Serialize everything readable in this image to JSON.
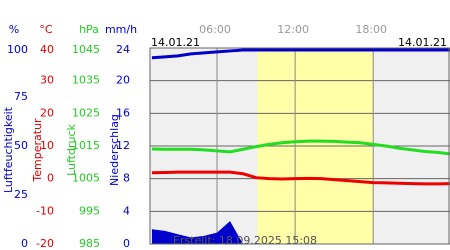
{
  "chart_data": {
    "type": "line",
    "date_left": "14.01.21",
    "date_right": "14.01.21",
    "footer": "Erstellt: 18.09.2025 15:08",
    "xlim": [
      0.85,
      23.9
    ],
    "xticks": [
      {
        "value": 6,
        "label": "06:00"
      },
      {
        "value": 12,
        "label": "12:00"
      },
      {
        "value": 18,
        "label": "18:00"
      }
    ],
    "daylight": [
      9.1,
      18
    ],
    "axes": [
      {
        "unit": "%",
        "label": "Luftfeuchtigkeit",
        "color": "#0000cc",
        "ylim": [
          0,
          100
        ],
        "yticks": [
          0,
          25,
          50,
          75,
          100
        ]
      },
      {
        "unit": "°C",
        "label": "Temperatur",
        "color": "#dd0000",
        "ylim": [
          -20,
          40
        ],
        "yticks": [
          -20,
          -10,
          0,
          10,
          20,
          30,
          40
        ]
      },
      {
        "unit": "hPa",
        "label": "Luftdruck",
        "color": "#22cc22",
        "ylim": [
          985,
          1045
        ],
        "yticks": [
          985,
          995,
          1005,
          1015,
          1025,
          1035,
          1045
        ]
      },
      {
        "unit": "mm/h",
        "label": "Niederschlag",
        "color": "#0000cc",
        "ylim": [
          0,
          24
        ],
        "yticks": [
          0,
          4,
          8,
          12,
          16,
          20,
          24
        ]
      }
    ],
    "x": [
      1,
      2,
      3,
      4,
      5,
      6,
      7,
      8,
      9,
      10,
      11,
      12,
      13,
      14,
      15,
      16,
      17,
      18,
      19,
      20,
      21,
      22,
      23,
      23.9
    ],
    "series": [
      {
        "name": "Luftfeuchtigkeit",
        "axis": 0,
        "color": "#0000cc",
        "values": [
          95,
          95.5,
          96,
          97,
          97.5,
          98,
          98.5,
          99,
          99,
          99,
          99,
          99,
          99,
          99,
          99,
          99,
          99,
          99,
          99,
          99,
          99,
          99,
          99,
          99
        ]
      },
      {
        "name": "Temperatur",
        "axis": 1,
        "color": "#ee0000",
        "values": [
          1.8,
          1.9,
          2,
          2,
          2,
          2,
          2,
          1.5,
          0.3,
          0,
          -0.1,
          0,
          0.1,
          0,
          -0.3,
          -0.6,
          -0.9,
          -1.2,
          -1.3,
          -1.4,
          -1.5,
          -1.6,
          -1.6,
          -1.5
        ]
      },
      {
        "name": "Luftdruck",
        "axis": 2,
        "color": "#22dd22",
        "values": [
          1014.1,
          1014,
          1014,
          1014,
          1013.8,
          1013.5,
          1013.2,
          1014,
          1014.8,
          1015.5,
          1016,
          1016.3,
          1016.5,
          1016.5,
          1016.4,
          1016.2,
          1016,
          1015.5,
          1015,
          1014.3,
          1013.8,
          1013.3,
          1013,
          1012.6
        ]
      },
      {
        "name": "Niederschlag",
        "axis": 3,
        "color": "#0000cc",
        "area": true,
        "values": [
          1.8,
          1.6,
          1.2,
          0.8,
          1.0,
          1.4,
          2.8,
          0,
          0,
          0,
          0,
          0,
          0,
          0,
          0,
          0,
          0,
          0,
          0,
          0,
          0,
          0,
          0,
          0
        ]
      }
    ]
  }
}
